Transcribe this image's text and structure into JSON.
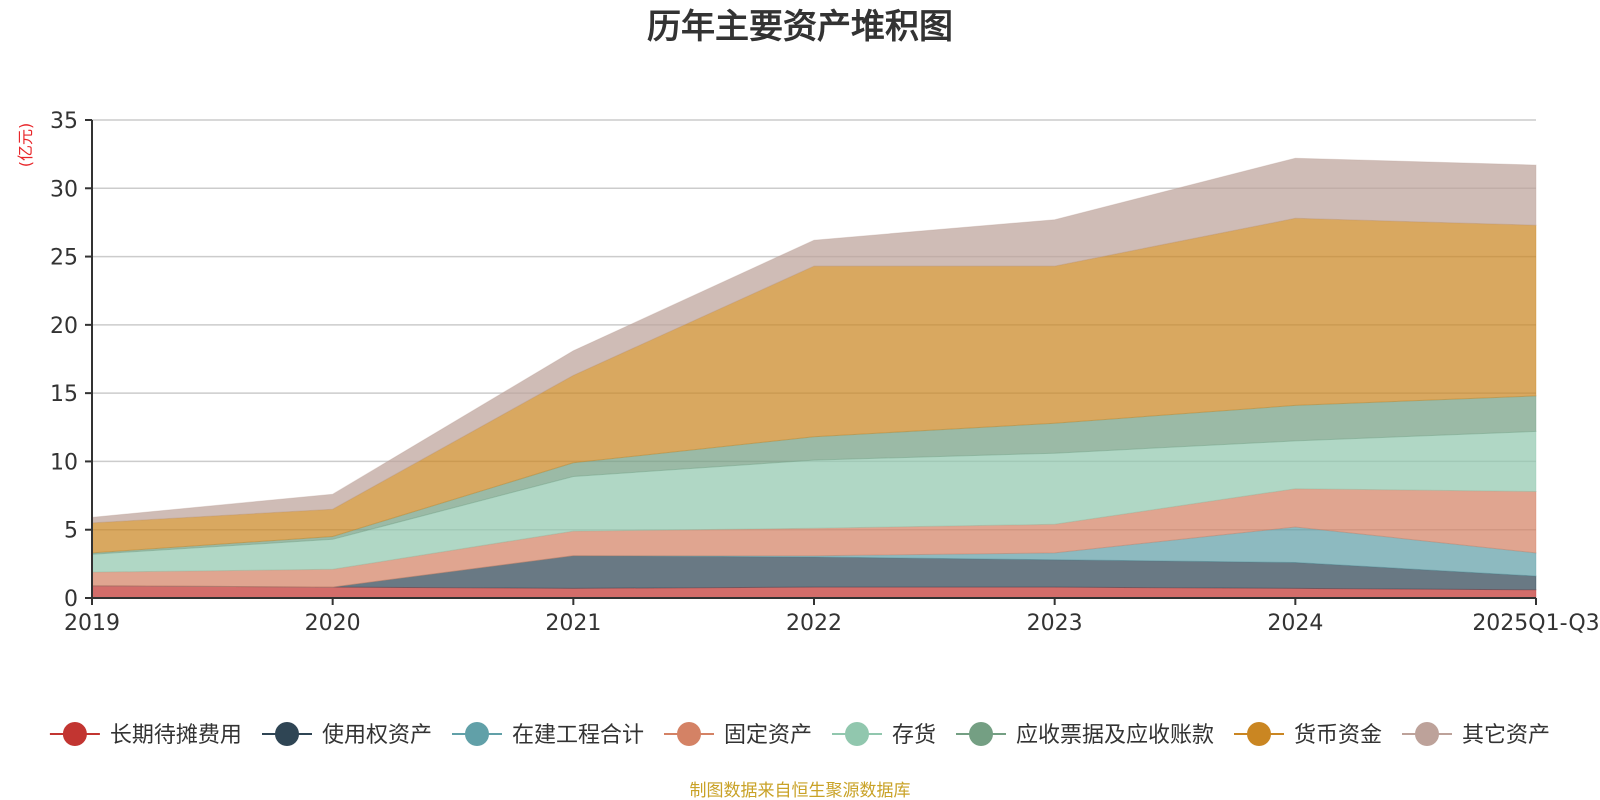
{
  "chart_data": {
    "type": "area",
    "stacked": true,
    "title": "历年主要资产堆积图",
    "ylabel": "(亿元)",
    "xlabel": "",
    "ylim": [
      0,
      35
    ],
    "yticks": [
      0,
      5,
      10,
      15,
      20,
      25,
      30,
      35
    ],
    "grid": true,
    "legend_position": "bottom",
    "categories": [
      "2019",
      "2020",
      "2021",
      "2022",
      "2023",
      "2024",
      "2025Q1-Q3"
    ],
    "series": [
      {
        "name": "长期待摊费用",
        "color": "#c23531",
        "values": [
          0.9,
          0.8,
          0.7,
          0.8,
          0.8,
          0.7,
          0.6
        ]
      },
      {
        "name": "使用权资产",
        "color": "#2f4554",
        "values": [
          0.0,
          0.0,
          2.4,
          2.2,
          2.0,
          1.9,
          1.0
        ]
      },
      {
        "name": "在建工程合计",
        "color": "#61a0a8",
        "values": [
          0.0,
          0.0,
          0.0,
          0.1,
          0.5,
          2.6,
          1.7
        ]
      },
      {
        "name": "固定资产",
        "color": "#d48265",
        "values": [
          1.0,
          1.3,
          1.8,
          2.0,
          2.1,
          2.8,
          4.5
        ]
      },
      {
        "name": "存货",
        "color": "#91c7ae",
        "values": [
          1.3,
          2.2,
          4.0,
          5.0,
          5.2,
          3.5,
          4.4
        ]
      },
      {
        "name": "应收票据及应收账款",
        "color": "#749f83",
        "values": [
          0.1,
          0.2,
          1.0,
          1.7,
          2.2,
          2.6,
          2.6
        ]
      },
      {
        "name": "货币资金",
        "color": "#ca8622",
        "values": [
          2.2,
          2.0,
          6.4,
          12.5,
          11.5,
          13.7,
          12.5
        ]
      },
      {
        "name": "其它资产",
        "color": "#bda29a",
        "values": [
          0.4,
          1.1,
          1.8,
          1.9,
          3.4,
          4.4,
          4.4
        ]
      }
    ]
  },
  "source_note": "制图数据来自恒生聚源数据库",
  "colors": {
    "unit_label": "#e8262a",
    "source_note": "#c9a227",
    "grid": "#cccccc",
    "axis": "#333333"
  }
}
